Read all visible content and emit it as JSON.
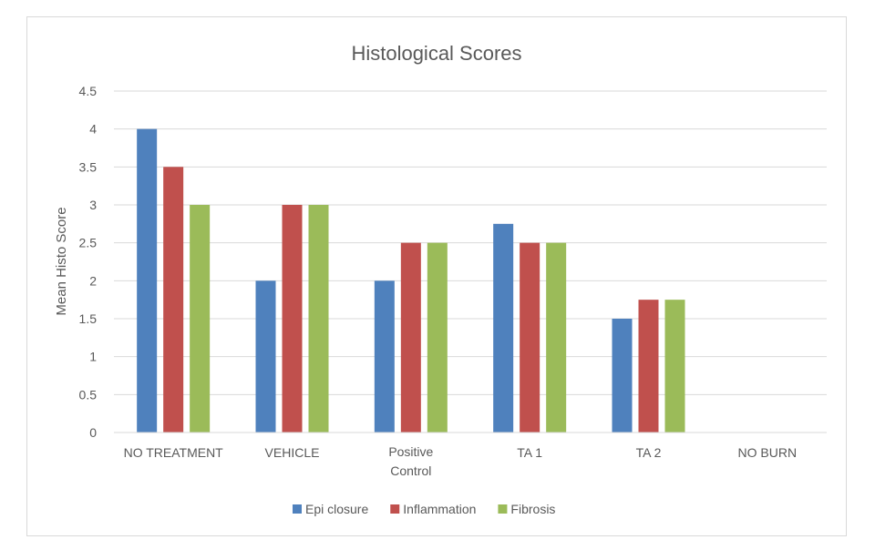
{
  "chart_data": {
    "type": "bar",
    "title": "Histological Scores",
    "xlabel": "",
    "ylabel": "Mean Histo Score",
    "ylim": [
      0,
      4.5
    ],
    "yticks": [
      "0",
      "0.5",
      "1",
      "1.5",
      "2",
      "2.5",
      "3",
      "3.5",
      "4",
      "4.5"
    ],
    "categories": [
      [
        "NO TREATMENT"
      ],
      [
        "VEHICLE"
      ],
      [
        "Positive",
        "Control"
      ],
      [
        "TA 1"
      ],
      [
        "TA 2"
      ],
      [
        "NO BURN"
      ]
    ],
    "series": [
      {
        "name": "Epi closure",
        "color": "#4f81bd",
        "values": [
          4,
          2,
          2,
          2.75,
          1.5,
          0
        ]
      },
      {
        "name": "Inflammation",
        "color": "#c0504d",
        "values": [
          3.5,
          3,
          2.5,
          2.5,
          1.75,
          0
        ]
      },
      {
        "name": "Fibrosis",
        "color": "#9bbb59",
        "values": [
          3,
          3,
          2.5,
          2.5,
          1.75,
          0
        ]
      }
    ],
    "grid": true,
    "legend_position": "bottom"
  }
}
